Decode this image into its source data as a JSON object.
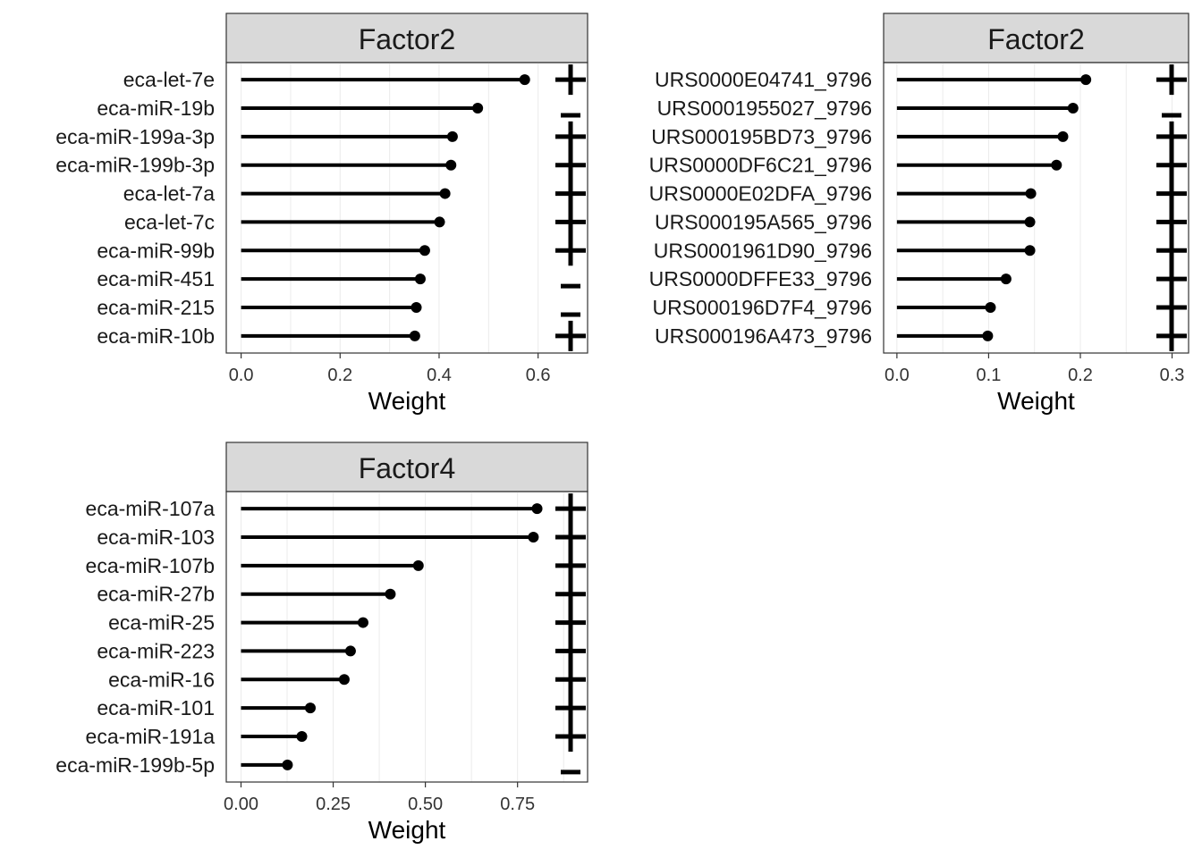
{
  "chart_data": [
    {
      "type": "lollipop",
      "title": "Factor2",
      "xlabel": "Weight",
      "xlim": [
        -0.03,
        0.7
      ],
      "xticks": [
        0.0,
        0.2,
        0.4,
        0.6
      ],
      "xtick_labels": [
        "0.0",
        "0.2",
        "0.4",
        "0.6"
      ],
      "grid": true,
      "categories": [
        "eca-let-7e",
        "eca-miR-19b",
        "eca-miR-199a-3p",
        "eca-miR-199b-3p",
        "eca-let-7a",
        "eca-let-7c",
        "eca-miR-99b",
        "eca-miR-451",
        "eca-miR-215",
        "eca-miR-10b"
      ],
      "values": [
        0.573,
        0.478,
        0.427,
        0.424,
        0.412,
        0.401,
        0.371,
        0.362,
        0.354,
        0.351
      ],
      "signs": [
        "+",
        "-",
        "+",
        "+",
        "+",
        "+",
        "+",
        "-",
        "-",
        "+"
      ]
    },
    {
      "type": "lollipop",
      "title": "Factor2",
      "xlabel": "Weight",
      "xlim": [
        -0.0145,
        0.318
      ],
      "xticks": [
        0.0,
        0.1,
        0.2,
        0.3
      ],
      "xtick_labels": [
        "0.0",
        "0.1",
        "0.2",
        "0.3"
      ],
      "grid": true,
      "categories": [
        "URS0000E04741_9796",
        "URS0001955027_9796",
        "URS000195BD73_9796",
        "URS0000DF6C21_9796",
        "URS0000E02DFA_9796",
        "URS000195A565_9796",
        "URS0001961D90_9796",
        "URS0000DFFE33_9796",
        "URS000196D7F4_9796",
        "URS000196A473_9796"
      ],
      "values": [
        0.206,
        0.192,
        0.181,
        0.174,
        0.146,
        0.145,
        0.145,
        0.119,
        0.102,
        0.099
      ],
      "signs": [
        "+",
        "-",
        "+",
        "+",
        "+",
        "+",
        "+",
        "+",
        "+",
        "+"
      ]
    },
    {
      "type": "lollipop",
      "title": "Factor4",
      "xlabel": "Weight",
      "xlim": [
        -0.04,
        0.94
      ],
      "xticks": [
        0.0,
        0.25,
        0.5,
        0.75
      ],
      "xtick_labels": [
        "0.00",
        "0.25",
        "0.50",
        "0.75"
      ],
      "grid": true,
      "categories": [
        "eca-miR-107a",
        "eca-miR-103",
        "eca-miR-107b",
        "eca-miR-27b",
        "eca-miR-25",
        "eca-miR-223",
        "eca-miR-16",
        "eca-miR-101",
        "eca-miR-191a",
        "eca-miR-199b-5p"
      ],
      "values": [
        0.803,
        0.793,
        0.481,
        0.405,
        0.331,
        0.297,
        0.28,
        0.188,
        0.165,
        0.126
      ],
      "signs": [
        "+",
        "+",
        "+",
        "+",
        "+",
        "+",
        "+",
        "+",
        "+",
        "-"
      ]
    }
  ]
}
